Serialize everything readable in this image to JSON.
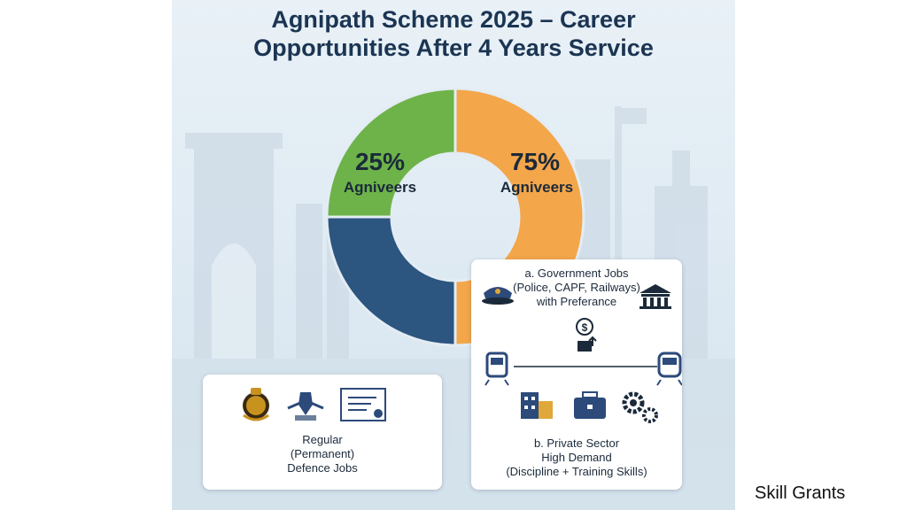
{
  "title": {
    "line1": "Agnipath Scheme 2025 – Career",
    "line2": "Opportunities After 4 Years Service"
  },
  "chart_data": {
    "type": "pie",
    "slices": [
      {
        "label": "25% Agniveers",
        "pct": "25%",
        "name": "Agniveers",
        "value": 25,
        "color": "#6db34a"
      },
      {
        "label": "75% Agniveers",
        "pct": "75%",
        "name": "Agniveers",
        "value": 75,
        "color": "#f3a64a"
      }
    ],
    "dark_segment_color": "#2c5580"
  },
  "cards": {
    "defence": {
      "line1": "Regular",
      "line2": "(Permanent)",
      "line3": "Defence Jobs",
      "icons": [
        "emblem-badge-icon",
        "air-force-crest-icon",
        "certificate-icon"
      ]
    },
    "government": {
      "line1": "a. Government Jobs",
      "line2": "(Police, CAPF, Railways)",
      "line3": "with Preferance",
      "icons": [
        "police-cap-icon",
        "government-building-icon",
        "money-up-icon",
        "train-icon",
        "metro-train-icon"
      ]
    },
    "private": {
      "line1": "b. Private Sector",
      "line2": "High Demand",
      "line3": "(Discipline + Training Skills)",
      "icons": [
        "office-building-icon",
        "briefcase-icon",
        "gears-icon"
      ]
    }
  },
  "watermark": "Skill Grants"
}
